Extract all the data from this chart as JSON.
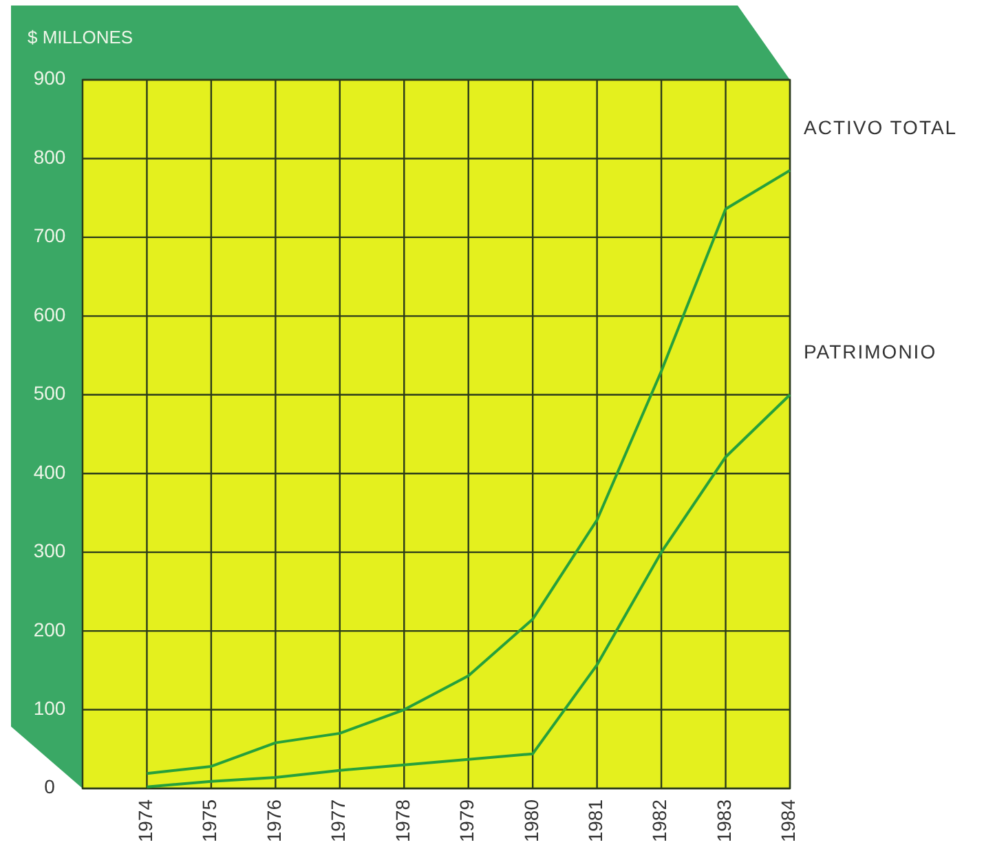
{
  "chart_data": {
    "type": "line",
    "ylabel": "$ MILLONES",
    "categories": [
      "1974",
      "1975",
      "1976",
      "1977",
      "1978",
      "1979",
      "1980",
      "1981",
      "1982",
      "1983",
      "1984"
    ],
    "series": [
      {
        "name": "ACTIVO TOTAL",
        "color": "#26a03c",
        "values": [
          19,
          28,
          58,
          70,
          100,
          143,
          215,
          341,
          530,
          736,
          785
        ]
      },
      {
        "name": "PATRIMONIO",
        "color": "#26a03c",
        "values": [
          2,
          9,
          14,
          23,
          30,
          37,
          44,
          157,
          300,
          421,
          500
        ]
      }
    ],
    "ylim": [
      0,
      900
    ],
    "yticks": [
      0,
      100,
      200,
      300,
      400,
      500,
      600,
      700,
      800,
      900
    ],
    "grid": true
  }
}
